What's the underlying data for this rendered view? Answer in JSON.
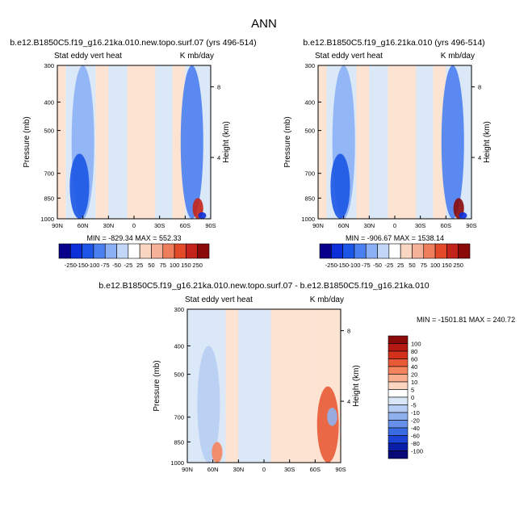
{
  "figure_title": "ANN",
  "chart_data": [
    {
      "type": "heatmap",
      "title": "b.e12.B1850C5.f19_g16.21ka.010.new.topo.surf.07 (yrs 496-514)",
      "subtitle_left": "Stat eddy vert heat",
      "subtitle_right": "K mb/day",
      "xlabel": "",
      "ylabel": "Pressure (mb)",
      "ylabel_right": "Height (km)",
      "x_ticks": [
        "90N",
        "60N",
        "30N",
        "0",
        "30S",
        "60S",
        "90S"
      ],
      "y_ticks": [
        "300",
        "400",
        "500",
        "700",
        "850",
        "1000"
      ],
      "y_right_ticks": [
        "8",
        "4"
      ],
      "ylim": [
        1000,
        300
      ],
      "stats": "MIN = -829.34   MAX = 552.33",
      "colorbar_levels": [
        "-250",
        "-150",
        "-100",
        "-75",
        "-50",
        "-25",
        "25",
        "50",
        "75",
        "100",
        "150",
        "250"
      ],
      "features": [
        {
          "lat": 60,
          "p_top": 300,
          "p_bot": 1000,
          "value": -75
        },
        {
          "lat": 64,
          "p_top": 600,
          "p_bot": 1000,
          "value": -150
        },
        {
          "lat": -68,
          "p_top": 300,
          "p_bot": 1000,
          "value": -100
        },
        {
          "lat": -75,
          "p_top": 850,
          "p_bot": 1000,
          "value": 150
        },
        {
          "lat": -80,
          "p_top": 950,
          "p_bot": 1000,
          "value": -250
        }
      ]
    },
    {
      "type": "heatmap",
      "title": "b.e12.B1850C5.f19_g16.21ka.010 (yrs 496-514)",
      "subtitle_left": "Stat eddy vert heat",
      "subtitle_right": "K mb/day",
      "xlabel": "",
      "ylabel": "Pressure (mb)",
      "ylabel_right": "Height (km)",
      "x_ticks": [
        "90N",
        "60N",
        "30N",
        "0",
        "30S",
        "60S",
        "90S"
      ],
      "y_ticks": [
        "300",
        "400",
        "500",
        "700",
        "850",
        "1000"
      ],
      "y_right_ticks": [
        "8",
        "4"
      ],
      "ylim": [
        1000,
        300
      ],
      "stats": "MIN = -906.67   MAX = 1538.14",
      "colorbar_levels": [
        "-250",
        "-150",
        "-100",
        "-75",
        "-50",
        "-25",
        "25",
        "50",
        "75",
        "100",
        "150",
        "250"
      ],
      "features": [
        {
          "lat": 60,
          "p_top": 300,
          "p_bot": 1000,
          "value": -75
        },
        {
          "lat": 64,
          "p_top": 600,
          "p_bot": 1000,
          "value": -150
        },
        {
          "lat": -68,
          "p_top": 300,
          "p_bot": 1000,
          "value": -100
        },
        {
          "lat": -75,
          "p_top": 850,
          "p_bot": 1000,
          "value": 250
        },
        {
          "lat": -80,
          "p_top": 950,
          "p_bot": 1000,
          "value": -250
        }
      ]
    },
    {
      "type": "heatmap",
      "title": "b.e12.B1850C5.f19_g16.21ka.010.new.topo.surf.07 - b.e12.B1850C5.f19_g16.21ka.010",
      "subtitle_left": "Stat eddy vert heat",
      "subtitle_right": "K mb/day",
      "xlabel": "",
      "ylabel": "Pressure (mb)",
      "ylabel_right": "Height (km)",
      "x_ticks": [
        "90N",
        "60N",
        "30N",
        "0",
        "30S",
        "60S",
        "90S"
      ],
      "y_ticks": [
        "300",
        "400",
        "500",
        "700",
        "850",
        "1000"
      ],
      "y_right_ticks": [
        "8",
        "4"
      ],
      "ylim": [
        1000,
        300
      ],
      "stats": "MIN = -1501.81   MAX = 240.72",
      "colorbar_levels": [
        "100",
        "80",
        "60",
        "40",
        "20",
        "10",
        "5",
        "0",
        "-5",
        "-10",
        "-20",
        "-40",
        "-60",
        "-80",
        "-100"
      ],
      "features": [
        {
          "lat": 65,
          "p_top": 400,
          "p_bot": 1000,
          "value": -10
        },
        {
          "lat": 55,
          "p_top": 850,
          "p_bot": 1000,
          "value": 20
        },
        {
          "lat": -75,
          "p_top": 550,
          "p_bot": 1000,
          "value": 40
        },
        {
          "lat": -80,
          "p_top": 650,
          "p_bot": 750,
          "value": -20
        }
      ]
    }
  ],
  "colors": {
    "top_scale": [
      "#08008a",
      "#0b2fd8",
      "#1b56e6",
      "#4b80f0",
      "#8bb0f5",
      "#c2d7f7",
      "#ffffff",
      "#f8d6c2",
      "#f5b298",
      "#ef7e5c",
      "#e34a2a",
      "#c3231a",
      "#8a0a0a"
    ],
    "diff_scale": [
      "#8a0a0a",
      "#b31812",
      "#d3311c",
      "#e85a35",
      "#f4845e",
      "#f8ae8f",
      "#fbd5c0",
      "#ffffff",
      "#d9e6f8",
      "#b6cef3",
      "#8fb2ee",
      "#6690e9",
      "#3a6be2",
      "#1b43d6",
      "#0a1ea8",
      "#060a78"
    ],
    "background_plus": "#fce3d2",
    "background_minus": "#dbe8f8"
  }
}
